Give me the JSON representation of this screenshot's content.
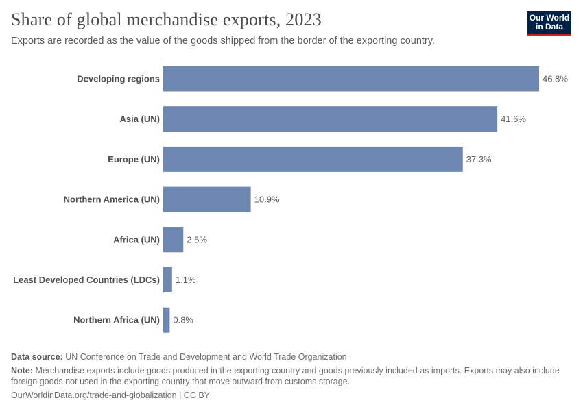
{
  "header": {
    "title": "Share of global merchandise exports, 2023",
    "subtitle": "Exports are recorded as the value of the goods shipped from the border of the exporting country.",
    "logo_line1": "Our World",
    "logo_line2": "in Data"
  },
  "footer": {
    "source_label": "Data source:",
    "source_text": "UN Conference on Trade and Development and World Trade Organization",
    "note_label": "Note:",
    "note_text": "Merchandise exports include goods produced in the exporting country and goods previously included as imports. Exports may also include foreign goods not used in the exporting country that move outward from customs storage.",
    "url_text": "OurWorldinData.org/trade-and-globalization",
    "license_text": "CC BY"
  },
  "colors": {
    "bar": "#6d87b0",
    "axis": "#dcdcdc"
  },
  "chart_data": {
    "type": "bar",
    "orientation": "horizontal",
    "title": "Share of global merchandise exports, 2023",
    "xlabel": "",
    "ylabel": "",
    "categories": [
      "Developing regions",
      "Asia (UN)",
      "Europe (UN)",
      "Northern America (UN)",
      "Africa (UN)",
      "Least Developed Countries (LDCs)",
      "Northern Africa (UN)"
    ],
    "values": [
      46.8,
      41.6,
      37.3,
      10.9,
      2.5,
      1.1,
      0.8
    ],
    "value_labels": [
      "46.8%",
      "41.6%",
      "37.3%",
      "10.9%",
      "2.5%",
      "1.1%",
      "0.8%"
    ],
    "unit": "%",
    "xlim": [
      0,
      46.8
    ]
  }
}
